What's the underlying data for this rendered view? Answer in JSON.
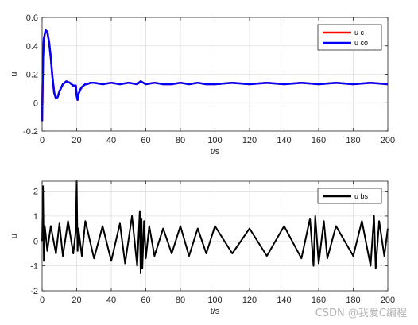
{
  "chart_data": [
    {
      "type": "line",
      "xlabel": "t/s",
      "ylabel": "u",
      "xlim": [
        0,
        200
      ],
      "ylim": [
        -0.2,
        0.6
      ],
      "xticks": [
        "0",
        "20",
        "40",
        "60",
        "80",
        "100",
        "120",
        "140",
        "160",
        "180",
        "200"
      ],
      "yticks": [
        "-0.2",
        "0",
        "0.2",
        "0.4",
        "0.6"
      ],
      "grid": true,
      "legend_position": "top-right",
      "series": [
        {
          "name": "u c",
          "color": "#ff0000",
          "x": [
            0,
            0.5,
            1,
            2,
            3,
            4,
            5,
            6,
            7,
            8,
            9,
            10,
            12,
            14,
            16,
            18,
            19.5,
            20,
            20.5,
            21,
            22,
            23,
            24,
            25,
            26,
            28,
            30,
            35,
            40,
            45,
            50,
            55,
            57,
            60,
            65,
            70,
            75,
            80,
            85,
            90,
            95,
            100,
            110,
            120,
            130,
            140,
            150,
            160,
            170,
            180,
            190,
            200
          ],
          "y": [
            -0.13,
            0.3,
            0.45,
            0.51,
            0.5,
            0.43,
            0.32,
            0.18,
            0.07,
            0.03,
            0.04,
            0.08,
            0.13,
            0.15,
            0.14,
            0.12,
            0.12,
            0.05,
            0.02,
            0.06,
            0.09,
            0.11,
            0.12,
            0.13,
            0.13,
            0.14,
            0.14,
            0.13,
            0.14,
            0.13,
            0.14,
            0.13,
            0.15,
            0.13,
            0.14,
            0.13,
            0.13,
            0.14,
            0.13,
            0.14,
            0.13,
            0.13,
            0.14,
            0.13,
            0.14,
            0.13,
            0.14,
            0.13,
            0.14,
            0.13,
            0.14,
            0.13
          ]
        },
        {
          "name": "u co",
          "color": "#0000ff",
          "x": [
            0,
            0.5,
            1,
            2,
            3,
            4,
            5,
            6,
            7,
            8,
            9,
            10,
            12,
            14,
            16,
            18,
            19.5,
            20,
            20.5,
            21,
            22,
            23,
            24,
            25,
            26,
            28,
            30,
            35,
            40,
            45,
            50,
            55,
            57,
            60,
            65,
            70,
            75,
            80,
            85,
            90,
            95,
            100,
            110,
            120,
            130,
            140,
            150,
            160,
            170,
            180,
            190,
            200
          ],
          "y": [
            -0.13,
            0.3,
            0.45,
            0.51,
            0.5,
            0.43,
            0.32,
            0.18,
            0.07,
            0.03,
            0.04,
            0.08,
            0.13,
            0.15,
            0.14,
            0.12,
            0.12,
            0.05,
            0.02,
            0.06,
            0.09,
            0.11,
            0.12,
            0.13,
            0.13,
            0.14,
            0.14,
            0.13,
            0.14,
            0.13,
            0.14,
            0.13,
            0.15,
            0.13,
            0.14,
            0.13,
            0.13,
            0.14,
            0.13,
            0.14,
            0.13,
            0.13,
            0.14,
            0.13,
            0.14,
            0.13,
            0.14,
            0.13,
            0.14,
            0.13,
            0.14,
            0.13
          ]
        }
      ]
    },
    {
      "type": "line",
      "xlabel": "t/s",
      "ylabel": "u",
      "xlim": [
        0,
        200
      ],
      "ylim": [
        -2,
        2.4
      ],
      "xticks": [
        "0",
        "20",
        "40",
        "60",
        "80",
        "100",
        "120",
        "140",
        "160",
        "180",
        "200"
      ],
      "yticks": [
        "-2",
        "-1",
        "0",
        "1",
        "2"
      ],
      "grid": true,
      "legend_position": "top-right",
      "series": [
        {
          "name": "u bs",
          "color": "#000000",
          "x": [
            0,
            0.5,
            1,
            1.5,
            2,
            3,
            5,
            8,
            10,
            12,
            15,
            18,
            19.5,
            20,
            20.5,
            21,
            23,
            25,
            30,
            35,
            40,
            45,
            48,
            52,
            55,
            56.5,
            57,
            57.5,
            58,
            59,
            60,
            62,
            65,
            70,
            75,
            80,
            85,
            90,
            95,
            100,
            110,
            120,
            130,
            140,
            150,
            155,
            157,
            158,
            160,
            163,
            165,
            170,
            180,
            185,
            190,
            192,
            193,
            195,
            198,
            200
          ],
          "y": [
            0,
            2.2,
            -0.8,
            0.6,
            0.3,
            -0.4,
            0.6,
            -0.5,
            0.7,
            -0.6,
            0.8,
            -0.5,
            0.4,
            2.4,
            -0.4,
            0.5,
            -0.6,
            0.8,
            -0.7,
            0.6,
            -0.8,
            0.7,
            -0.9,
            1.0,
            -1.0,
            1.2,
            -1.3,
            0.9,
            -1.1,
            0.8,
            -0.7,
            0.6,
            -0.6,
            0.5,
            -0.5,
            0.6,
            -0.6,
            0.5,
            -0.5,
            0.6,
            -0.5,
            0.5,
            -0.6,
            0.6,
            -0.7,
            0.9,
            -1.0,
            1.0,
            -0.9,
            0.8,
            -0.7,
            0.6,
            -0.6,
            0.8,
            -1.0,
            1.0,
            -1.1,
            0.8,
            -0.6,
            0.5
          ]
        }
      ]
    }
  ],
  "watermark": "CSDN @我爱C编程"
}
